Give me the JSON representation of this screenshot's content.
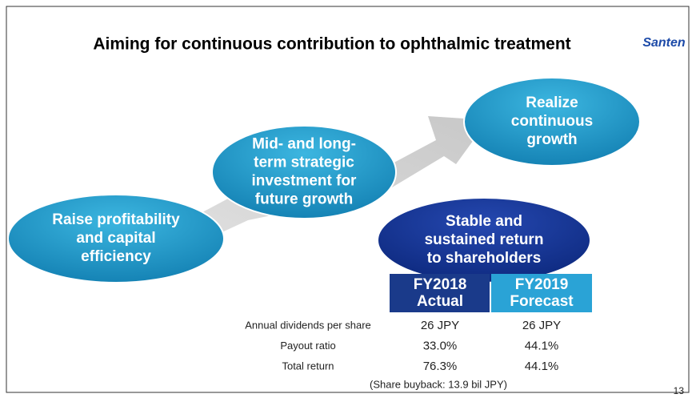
{
  "header": {
    "title": "Aiming for continuous contribution to ophthalmic treatment",
    "logo": "Santen"
  },
  "nodes": [
    {
      "lines": [
        "Raise profitability",
        "and capital",
        "efficiency"
      ]
    },
    {
      "lines": [
        "Mid- and long-",
        "term strategic",
        "investment for",
        "future growth"
      ]
    },
    {
      "lines": [
        "Realize",
        "continuous",
        "growth"
      ]
    },
    {
      "lines": [
        "Stable and",
        "sustained return",
        "to shareholders"
      ]
    }
  ],
  "table": {
    "columns": [
      [
        "FY2018",
        "Actual"
      ],
      [
        "FY2019",
        "Forecast"
      ]
    ],
    "rows": [
      [
        "Annual dividends per share",
        "26 JPY",
        "26 JPY"
      ],
      [
        "Payout ratio",
        "33.0%",
        "44.1%"
      ],
      [
        "Total return",
        "76.3%",
        "44.1%"
      ]
    ],
    "note": "(Share buyback: 13.9 bil JPY)"
  },
  "page_number": "13"
}
